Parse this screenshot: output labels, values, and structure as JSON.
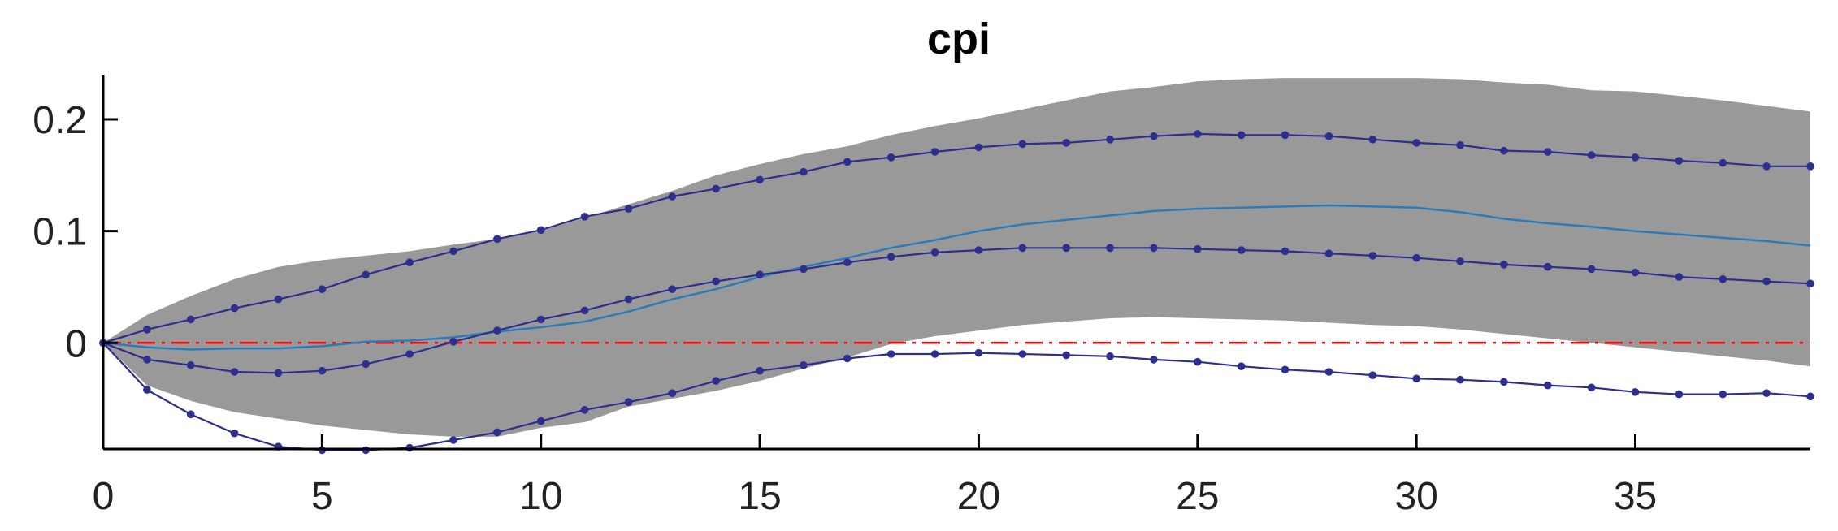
{
  "chart_data": {
    "type": "line",
    "title": "cpi",
    "xlabel": "",
    "ylabel": "",
    "xlim": [
      0,
      39
    ],
    "ylim": [
      -0.095,
      0.24
    ],
    "xticks": [
      0,
      5,
      10,
      15,
      20,
      25,
      30,
      35
    ],
    "yticks": [
      0,
      0.1,
      0.2
    ],
    "ytick_labels": [
      "0",
      "0.1",
      "0.2"
    ],
    "grid": false,
    "legend": "none",
    "colors": {
      "band": "#999999",
      "median": "#2b7bba",
      "markers": "#2e2e8f",
      "zero_line": "#ff0000"
    },
    "x": [
      0,
      1,
      2,
      3,
      4,
      5,
      6,
      7,
      8,
      9,
      10,
      11,
      12,
      13,
      14,
      15,
      16,
      17,
      18,
      19,
      20,
      21,
      22,
      23,
      24,
      25,
      26,
      27,
      28,
      29,
      30,
      31,
      32,
      33,
      34,
      35,
      36,
      37,
      38,
      39
    ],
    "band": {
      "name": "",
      "upper": [
        0,
        0.025,
        0.042,
        0.057,
        0.068,
        0.074,
        0.078,
        0.082,
        0.088,
        0.093,
        0.1,
        0.112,
        0.124,
        0.136,
        0.15,
        0.16,
        0.169,
        0.176,
        0.186,
        0.194,
        0.201,
        0.209,
        0.217,
        0.225,
        0.229,
        0.234,
        0.236,
        0.237,
        0.237,
        0.237,
        0.237,
        0.236,
        0.233,
        0.231,
        0.226,
        0.225,
        0.221,
        0.217,
        0.212,
        0.207
      ],
      "lower": [
        0,
        -0.038,
        -0.052,
        -0.062,
        -0.068,
        -0.074,
        -0.078,
        -0.082,
        -0.084,
        -0.084,
        -0.076,
        -0.071,
        -0.057,
        -0.05,
        -0.043,
        -0.034,
        -0.023,
        -0.013,
        -0.001,
        0.006,
        0.011,
        0.016,
        0.019,
        0.022,
        0.023,
        0.022,
        0.021,
        0.02,
        0.018,
        0.016,
        0.015,
        0.012,
        0.008,
        0.004,
        0.0,
        -0.004,
        -0.008,
        -0.012,
        -0.016,
        -0.021
      ]
    },
    "series": [
      {
        "name": "",
        "style": "line",
        "values": [
          0,
          -0.004,
          -0.006,
          -0.005,
          -0.005,
          -0.003,
          0.001,
          0.002,
          0.005,
          0.01,
          0.014,
          0.019,
          0.028,
          0.039,
          0.048,
          0.059,
          0.068,
          0.076,
          0.085,
          0.092,
          0.1,
          0.106,
          0.11,
          0.114,
          0.118,
          0.12,
          0.121,
          0.122,
          0.123,
          0.122,
          0.121,
          0.117,
          0.111,
          0.107,
          0.104,
          0.1,
          0.097,
          0.094,
          0.091,
          0.087
        ]
      },
      {
        "name": "",
        "style": "markers",
        "values": [
          0,
          0.012,
          0.021,
          0.031,
          0.039,
          0.048,
          0.061,
          0.072,
          0.082,
          0.093,
          0.101,
          0.113,
          0.12,
          0.131,
          0.138,
          0.146,
          0.153,
          0.162,
          0.166,
          0.171,
          0.175,
          0.178,
          0.179,
          0.182,
          0.185,
          0.187,
          0.186,
          0.186,
          0.185,
          0.182,
          0.179,
          0.177,
          0.172,
          0.171,
          0.168,
          0.166,
          0.163,
          0.161,
          0.158,
          0.158
        ]
      },
      {
        "name": "",
        "style": "markers",
        "values": [
          0,
          -0.015,
          -0.02,
          -0.026,
          -0.027,
          -0.025,
          -0.019,
          -0.01,
          0.001,
          0.011,
          0.021,
          0.029,
          0.039,
          0.048,
          0.055,
          0.061,
          0.066,
          0.072,
          0.077,
          0.081,
          0.083,
          0.085,
          0.085,
          0.085,
          0.085,
          0.084,
          0.083,
          0.082,
          0.08,
          0.078,
          0.076,
          0.073,
          0.07,
          0.068,
          0.066,
          0.063,
          0.059,
          0.057,
          0.055,
          0.053
        ]
      },
      {
        "name": "",
        "style": "markers",
        "values": [
          0,
          -0.042,
          -0.064,
          -0.081,
          -0.093,
          -0.096,
          -0.096,
          -0.094,
          -0.087,
          -0.08,
          -0.07,
          -0.06,
          -0.053,
          -0.045,
          -0.034,
          -0.025,
          -0.02,
          -0.014,
          -0.01,
          -0.01,
          -0.009,
          -0.01,
          -0.011,
          -0.012,
          -0.015,
          -0.017,
          -0.021,
          -0.024,
          -0.026,
          -0.029,
          -0.032,
          -0.033,
          -0.035,
          -0.038,
          -0.04,
          -0.044,
          -0.046,
          -0.046,
          -0.045,
          -0.048
        ]
      }
    ],
    "reference_line": {
      "y": 0,
      "style": "dash-dot"
    }
  }
}
